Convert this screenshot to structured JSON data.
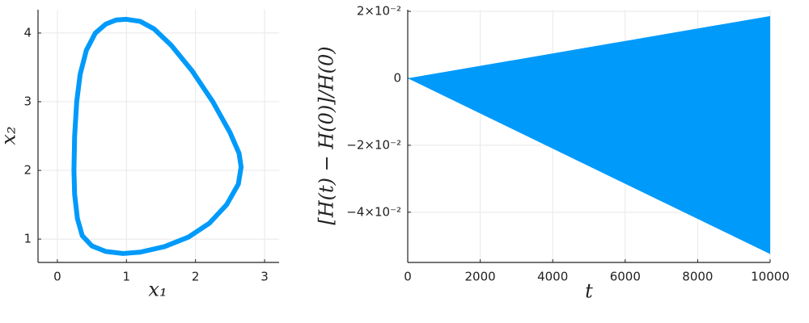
{
  "chart_data": [
    {
      "type": "line",
      "x_label": "x₁",
      "y_label": "x₂",
      "color": "#009afa",
      "grid": true,
      "xlim": [
        -0.28,
        3.21
      ],
      "ylim": [
        0.66,
        4.34
      ],
      "xticks": [
        0,
        1,
        2,
        3
      ],
      "yticks": [
        1,
        2,
        3,
        4
      ],
      "x": [
        0.24,
        0.25,
        0.28,
        0.33,
        0.42,
        0.55,
        0.7,
        0.85,
        1.0,
        1.2,
        1.4,
        1.65,
        1.95,
        2.25,
        2.5,
        2.63,
        2.66,
        2.62,
        2.45,
        2.2,
        1.9,
        1.55,
        1.2,
        0.95,
        0.7,
        0.5,
        0.36,
        0.29,
        0.25,
        0.24
      ],
      "y": [
        2.0,
        2.5,
        3.0,
        3.4,
        3.75,
        4.0,
        4.13,
        4.19,
        4.2,
        4.17,
        4.06,
        3.82,
        3.45,
        3.0,
        2.55,
        2.25,
        2.05,
        1.8,
        1.5,
        1.23,
        1.03,
        0.89,
        0.81,
        0.79,
        0.82,
        0.9,
        1.05,
        1.3,
        1.65,
        2.0
      ]
    },
    {
      "type": "area",
      "x_label": "t",
      "y_label": "[H(t) − H(0)]/H(0)",
      "color": "#009afa",
      "grid": true,
      "xlim": [
        0,
        10000
      ],
      "ylim": [
        -0.055,
        0.0205
      ],
      "xticks": [
        0,
        2000,
        4000,
        6000,
        8000,
        10000
      ],
      "yticks": [
        {
          "value": 0.02,
          "label": "2×10⁻²"
        },
        0,
        {
          "value": -0.02,
          "label": "−2×10⁻²"
        },
        {
          "value": -0.04,
          "label": "−4×10⁻²"
        }
      ],
      "x": [
        0,
        10000
      ],
      "y_high": [
        0,
        0.0186
      ],
      "y_low": [
        0,
        -0.0525
      ]
    }
  ]
}
